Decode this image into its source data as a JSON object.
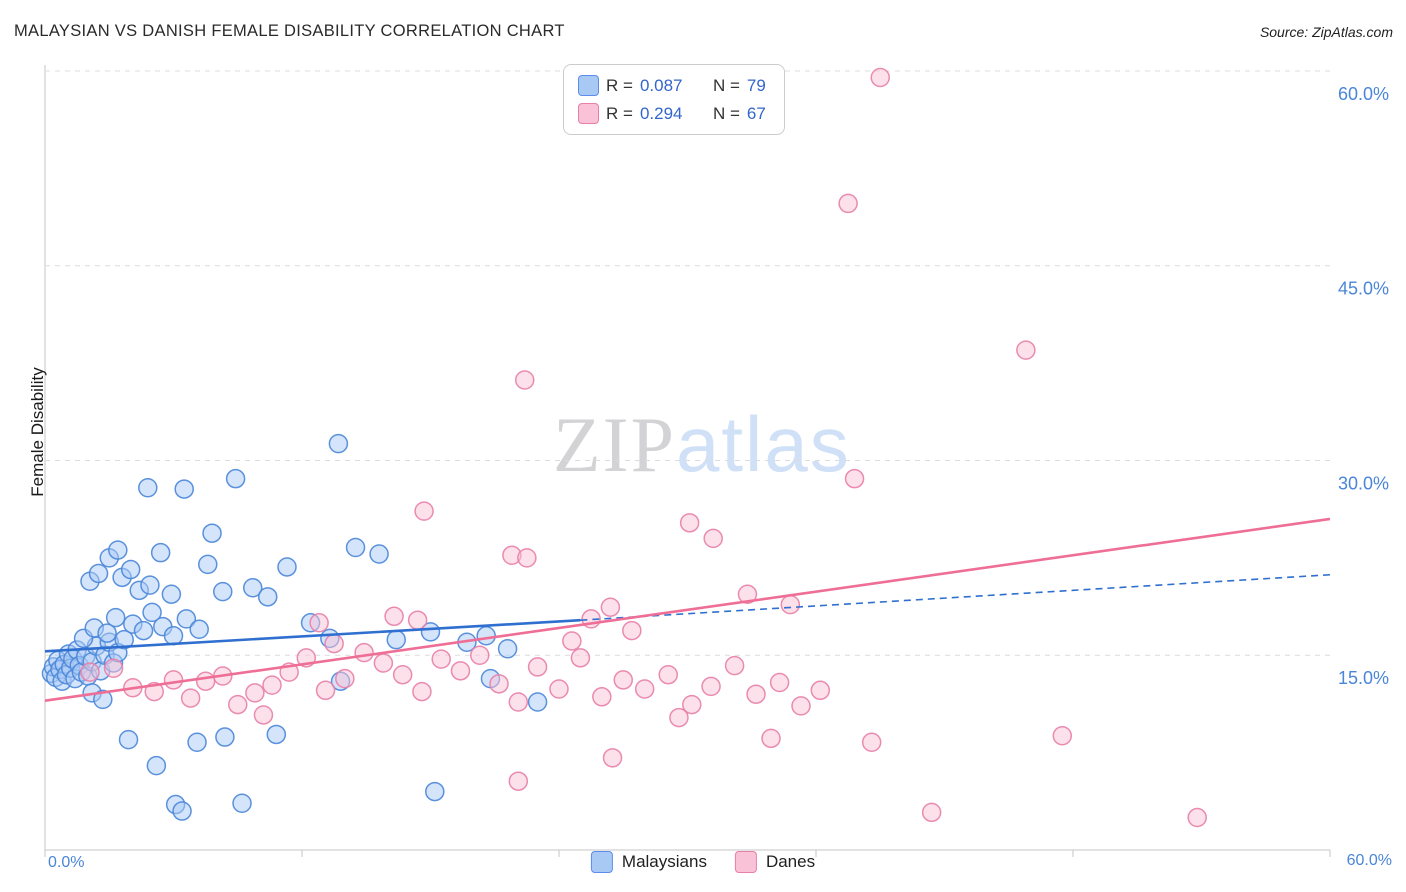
{
  "header": {
    "title": "MALAYSIAN VS DANISH FEMALE DISABILITY CORRELATION CHART",
    "source": "Source: ZipAtlas.com"
  },
  "legend_box": {
    "rows": [
      {
        "series": "Malaysians",
        "r_label": "R =",
        "r_value": "0.087",
        "n_label": "N =",
        "n_value": "79"
      },
      {
        "series": "Danes",
        "r_label": "R =",
        "r_value": "0.294",
        "n_label": "N =",
        "n_value": "67"
      }
    ]
  },
  "watermark": {
    "zip": "ZIP",
    "atlas": "atlas"
  },
  "axes": {
    "y_label": "Female Disability",
    "x_left_label": "0.0%",
    "x_right_label": "60.0%"
  },
  "bottom_legend": {
    "items": [
      {
        "label": "Malaysians"
      },
      {
        "label": "Danes"
      }
    ]
  },
  "colors": {
    "malaysians_fill": "#a9c9f5",
    "malaysians_stroke": "#4a86d8",
    "danes_fill": "#f9c2d6",
    "danes_stroke": "#e87fa8",
    "blue_trend": "#2f6fd0",
    "pink_trend": "#ee6e96",
    "axis_label_blue": "#4a86d8",
    "grid": "#dcdcdc",
    "axis_line": "#c4c4c4",
    "value_blue": "#3366cc"
  },
  "chart_data": {
    "type": "scatter",
    "title": "MALAYSIAN VS DANISH FEMALE DISABILITY CORRELATION CHART",
    "xlabel": "",
    "ylabel": "Female Disability",
    "xlim": [
      0,
      60
    ],
    "ylim": [
      0,
      60
    ],
    "x_tick_labels": [
      "0.0%",
      "60.0%"
    ],
    "x_ticks_pct": [
      0,
      12,
      24,
      36,
      48,
      60
    ],
    "y_ticks": [
      {
        "v": 60,
        "label": "60.0%"
      },
      {
        "v": 45,
        "label": "45.0%"
      },
      {
        "v": 30,
        "label": "30.0%"
      },
      {
        "v": 15,
        "label": "15.0%"
      }
    ],
    "grid": "horizontal-dashed",
    "legend_position": "bottom-center",
    "series": [
      {
        "name": "Malaysians",
        "R": 0.087,
        "N": 79,
        "points": [
          [
            0.3,
            13.6
          ],
          [
            0.4,
            14.1
          ],
          [
            0.5,
            13.3
          ],
          [
            0.6,
            14.6
          ],
          [
            0.7,
            13.9
          ],
          [
            0.8,
            13.0
          ],
          [
            0.9,
            14.3
          ],
          [
            1.0,
            13.5
          ],
          [
            1.1,
            15.1
          ],
          [
            1.2,
            14.0
          ],
          [
            1.3,
            14.7
          ],
          [
            1.4,
            13.2
          ],
          [
            1.5,
            15.4
          ],
          [
            1.6,
            14.2
          ],
          [
            1.7,
            13.7
          ],
          [
            1.9,
            14.9
          ],
          [
            2.0,
            13.4
          ],
          [
            2.2,
            14.5
          ],
          [
            2.4,
            15.7
          ],
          [
            2.6,
            13.8
          ],
          [
            2.8,
            15.0
          ],
          [
            3.0,
            16.0
          ],
          [
            3.2,
            14.4
          ],
          [
            3.4,
            15.2
          ],
          [
            1.8,
            16.3
          ],
          [
            2.3,
            17.1
          ],
          [
            2.9,
            16.7
          ],
          [
            3.3,
            17.9
          ],
          [
            3.7,
            16.2
          ],
          [
            4.1,
            17.4
          ],
          [
            4.6,
            16.9
          ],
          [
            5.0,
            18.3
          ],
          [
            5.5,
            17.2
          ],
          [
            6.0,
            16.5
          ],
          [
            6.6,
            17.8
          ],
          [
            7.2,
            17.0
          ],
          [
            2.1,
            20.7
          ],
          [
            2.5,
            21.3
          ],
          [
            3.0,
            22.5
          ],
          [
            3.4,
            23.1
          ],
          [
            3.6,
            21.0
          ],
          [
            4.0,
            21.6
          ],
          [
            4.4,
            20.0
          ],
          [
            4.9,
            20.4
          ],
          [
            5.4,
            22.9
          ],
          [
            5.9,
            19.7
          ],
          [
            7.6,
            22.0
          ],
          [
            8.3,
            19.9
          ],
          [
            9.7,
            20.2
          ],
          [
            11.3,
            21.8
          ],
          [
            4.8,
            27.9
          ],
          [
            6.5,
            27.8
          ],
          [
            8.9,
            28.6
          ],
          [
            13.7,
            31.3
          ],
          [
            7.8,
            24.4
          ],
          [
            10.4,
            19.5
          ],
          [
            12.4,
            17.5
          ],
          [
            13.3,
            16.3
          ],
          [
            14.5,
            23.3
          ],
          [
            15.6,
            22.8
          ],
          [
            16.4,
            16.2
          ],
          [
            18.0,
            16.8
          ],
          [
            19.7,
            16.0
          ],
          [
            20.6,
            16.5
          ],
          [
            21.6,
            15.5
          ],
          [
            2.2,
            12.1
          ],
          [
            2.7,
            11.6
          ],
          [
            3.9,
            8.5
          ],
          [
            5.2,
            6.5
          ],
          [
            6.1,
            3.5
          ],
          [
            6.4,
            3.0
          ],
          [
            7.1,
            8.3
          ],
          [
            8.4,
            8.7
          ],
          [
            9.2,
            3.6
          ],
          [
            10.8,
            8.9
          ],
          [
            13.8,
            13.0
          ],
          [
            18.2,
            4.5
          ],
          [
            20.8,
            13.2
          ],
          [
            23.0,
            11.4
          ]
        ]
      },
      {
        "name": "Danes",
        "R": 0.294,
        "N": 67,
        "points": [
          [
            2.1,
            13.7
          ],
          [
            3.2,
            14.0
          ],
          [
            4.1,
            12.5
          ],
          [
            5.1,
            12.2
          ],
          [
            6.0,
            13.1
          ],
          [
            6.8,
            11.7
          ],
          [
            7.5,
            13.0
          ],
          [
            8.3,
            13.4
          ],
          [
            9.0,
            11.2
          ],
          [
            9.8,
            12.1
          ],
          [
            10.6,
            12.7
          ],
          [
            11.4,
            13.7
          ],
          [
            12.2,
            14.8
          ],
          [
            13.1,
            12.3
          ],
          [
            14.0,
            13.2
          ],
          [
            14.9,
            15.2
          ],
          [
            15.8,
            14.4
          ],
          [
            16.7,
            13.5
          ],
          [
            17.6,
            12.2
          ],
          [
            18.5,
            14.7
          ],
          [
            19.4,
            13.8
          ],
          [
            20.3,
            15.0
          ],
          [
            21.2,
            12.8
          ],
          [
            22.1,
            11.4
          ],
          [
            23.0,
            14.1
          ],
          [
            24.0,
            12.4
          ],
          [
            25.0,
            14.8
          ],
          [
            26.0,
            11.8
          ],
          [
            27.0,
            13.1
          ],
          [
            28.0,
            12.4
          ],
          [
            29.1,
            13.5
          ],
          [
            30.2,
            11.2
          ],
          [
            31.1,
            12.6
          ],
          [
            32.2,
            14.2
          ],
          [
            33.2,
            12.0
          ],
          [
            34.3,
            12.9
          ],
          [
            35.3,
            11.1
          ],
          [
            36.2,
            12.3
          ],
          [
            12.8,
            17.5
          ],
          [
            16.3,
            18.0
          ],
          [
            17.4,
            17.7
          ],
          [
            21.8,
            22.7
          ],
          [
            25.5,
            17.8
          ],
          [
            26.4,
            18.7
          ],
          [
            30.1,
            25.2
          ],
          [
            32.8,
            19.7
          ],
          [
            17.7,
            26.1
          ],
          [
            22.5,
            22.5
          ],
          [
            27.4,
            16.9
          ],
          [
            24.6,
            16.1
          ],
          [
            34.8,
            18.9
          ],
          [
            39.0,
            59.5
          ],
          [
            37.5,
            49.8
          ],
          [
            45.8,
            38.5
          ],
          [
            22.4,
            36.2
          ],
          [
            37.8,
            28.6
          ],
          [
            31.2,
            24.0
          ],
          [
            22.1,
            5.3
          ],
          [
            26.5,
            7.1
          ],
          [
            33.9,
            8.6
          ],
          [
            41.4,
            2.9
          ],
          [
            47.5,
            8.8
          ],
          [
            53.8,
            2.5
          ],
          [
            29.6,
            10.2
          ],
          [
            38.6,
            8.3
          ],
          [
            10.2,
            10.4
          ],
          [
            13.5,
            15.9
          ]
        ]
      }
    ],
    "trend_lines": [
      {
        "series": "Malaysians",
        "style": "solid",
        "x": [
          0,
          25
        ],
        "y": [
          15.3,
          17.7
        ]
      },
      {
        "series": "Malaysians",
        "style": "dashed",
        "x": [
          25,
          60
        ],
        "y": [
          17.7,
          21.2
        ]
      },
      {
        "series": "Danes",
        "style": "solid",
        "x": [
          0,
          60
        ],
        "y": [
          11.5,
          25.5
        ]
      }
    ]
  }
}
